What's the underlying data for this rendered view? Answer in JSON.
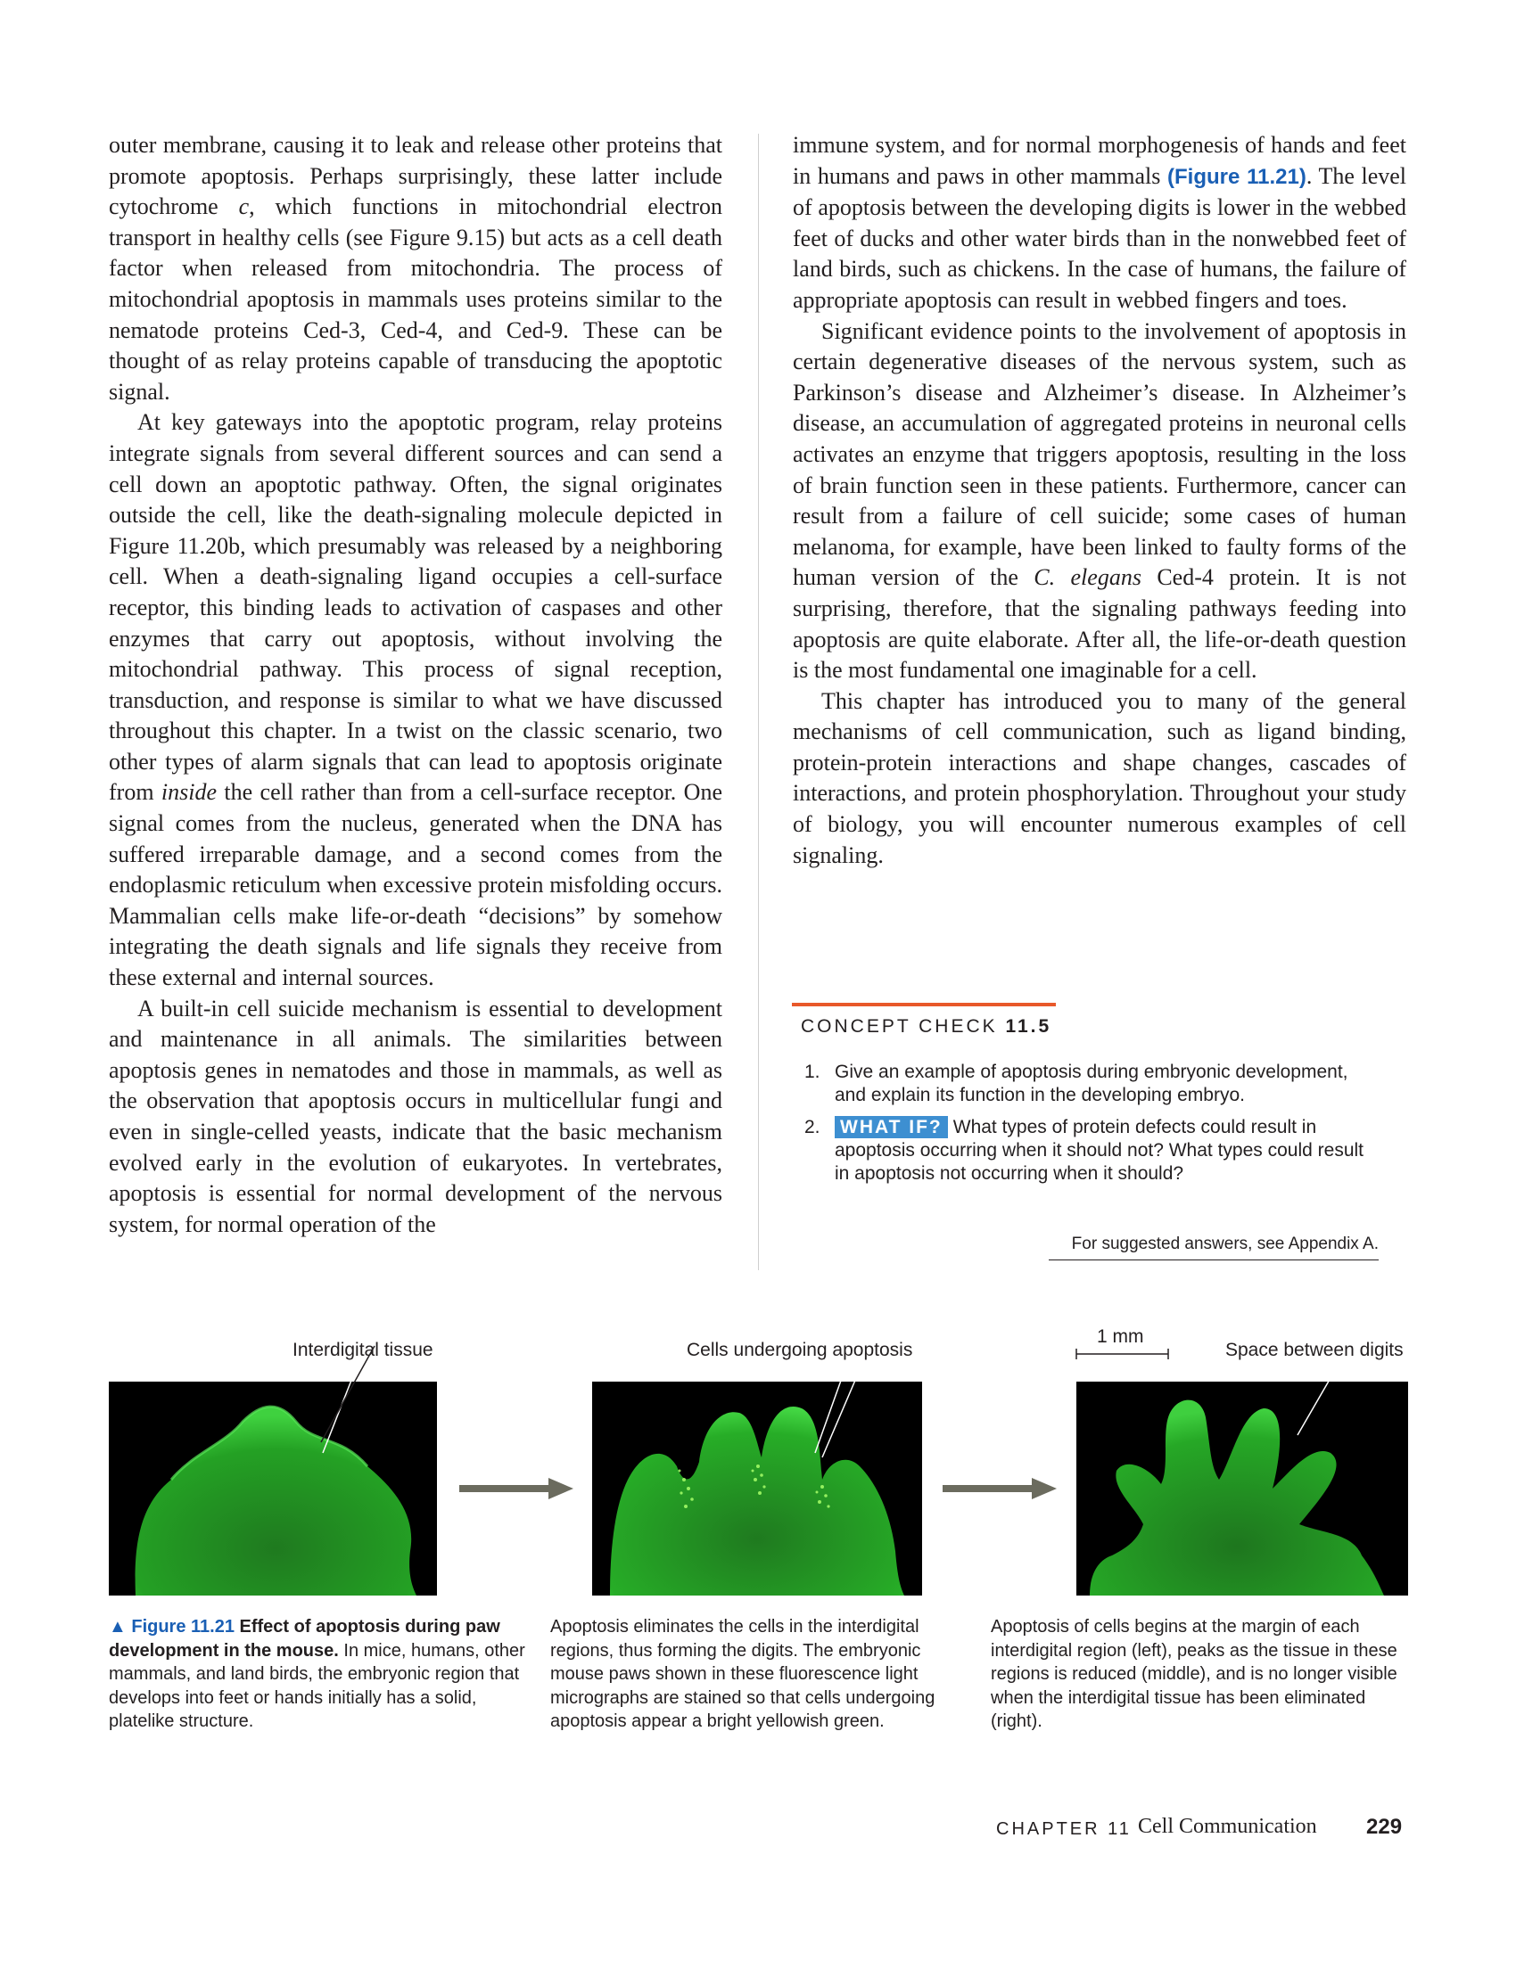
{
  "left_column": {
    "p1": "outer membrane, causing it to leak and release other proteins that promote apoptosis. Perhaps surprisingly, these latter include cytochrome ",
    "p1_italic": "c",
    "p1_rest": ", which functions in mitochondrial electron transport in healthy cells (see Figure 9.15) but acts as a cell death factor when released from mitochondria. The process of mitochondrial apoptosis in mammals uses proteins similar to the nematode proteins Ced-3, Ced-4, and Ced-9. These can be thought of as relay proteins capable of transducing the apoptotic signal.",
    "p2_start": "At key gateways into the apoptotic program, relay proteins integrate signals from several different sources and can send a cell down an apoptotic pathway. Often, the signal originates outside the cell, like the death-signaling molecule depicted in Figure 11.20b, which presumably was released by a neighboring cell. When a death-signaling ligand occupies a cell-surface receptor, this binding leads to activation of caspases and other enzymes that carry out apoptosis, without involving the mitochondrial pathway. This process of signal reception, transduction, and response is similar to what we have discussed throughout this chapter. In a twist on the classic scenario, two other types of alarm signals that can lead to apoptosis originate from ",
    "p2_italic": "inside",
    "p2_rest": " the cell rather than from a cell-surface receptor. One signal comes from the nucleus, generated when the DNA has suffered irreparable damage, and a second comes from the endoplasmic reticulum when excessive protein misfolding occurs. Mammalian cells make life-or-death “decisions” by somehow integrating the death signals and life signals they receive from these external and internal sources.",
    "p3": "A built-in cell suicide mechanism is essential to development and maintenance in all animals. The similarities between apoptosis genes in nematodes and those in mammals, as well as the observation that apoptosis occurs in multicellular fungi and even in single-celled yeasts, indicate that the basic mechanism evolved early in the evolution of eukaryotes. In vertebrates, apoptosis is essential for normal development of the nervous system, for normal operation of the"
  },
  "right_column": {
    "p1_start": "immune system, and for normal morphogenesis of hands and feet in humans and paws in other mammals ",
    "p1_figref": "(Figure 11.21)",
    "p1_rest": ". The level of apoptosis between the developing digits is lower in the webbed feet of ducks and other water birds than in the nonwebbed feet of land birds, such as chickens. In the case of humans, the failure of appropriate apoptosis can result in webbed fingers and toes.",
    "p2_start": "Significant evidence points to the involvement of apoptosis in certain degenerative diseases of the nervous system, such as Parkinson’s disease and Alzheimer’s disease. In Alzheimer’s disease, an accumulation of aggregated proteins in neuronal cells activates an enzyme that triggers apoptosis, resulting in the loss of brain function seen in these patients. Furthermore, cancer can result from a failure of cell suicide; some cases of human melanoma, for example, have been linked to faulty forms of the human version of the ",
    "p2_italic": "C. elegans",
    "p2_rest": " Ced-4 protein. It is not surprising, therefore, that the signaling pathways feeding into apoptosis are quite elaborate. After all, the life-or-death question is the most fundamental one imaginable for a cell.",
    "p3": "This chapter has introduced you to many of the general mechanisms of cell communication, such as ligand binding, protein-protein interactions and shape changes, cascades of interactions, and protein phosphorylation. Throughout your study of biology, you will encounter numerous examples of cell signaling."
  },
  "concept_check": {
    "label": "CONCEPT CHECK ",
    "number": "11.5",
    "q1_num": "1.",
    "q1": "Give an example of apoptosis during embryonic development, and explain its function in the developing embryo.",
    "q2_num": "2.",
    "q2_tag": "WHAT IF?",
    "q2": "What types of protein defects could result in apoptosis occurring when it should not? What types could result in apoptosis not occurring when it should?",
    "answers": "For suggested answers, see Appendix A."
  },
  "figure": {
    "label_interdigital": "Interdigital tissue",
    "label_apoptosis": "Cells undergoing apoptosis",
    "label_scale": "1 mm",
    "label_space": "Space between digits",
    "caption_marker": "▲ Figure 11.21",
    "caption_title": " Effect of apoptosis during paw development in the mouse.",
    "caption1": " In mice, humans, other mammals, and land birds, the embryonic region that develops into feet or hands initially has a solid, platelike structure.",
    "caption2": "Apoptosis eliminates the cells in the interdigital regions, thus forming the digits. The embryonic mouse paws shown in these fluorescence light micrographs are stained so that cells undergoing apoptosis appear a bright yellowish green.",
    "caption3": "Apoptosis of cells begins at the margin of each interdigital region (left), peaks as the tissue in these regions is reduced (middle), and is no longer visible when the interdigital tissue has been eliminated (right).",
    "accent_color": "#1a5fb4",
    "fluorescence_color": "#2fbf2f"
  },
  "footer": {
    "chapter_label": "CHAPTER 11",
    "chapter_title": "Cell Communication",
    "page_number": "229"
  }
}
